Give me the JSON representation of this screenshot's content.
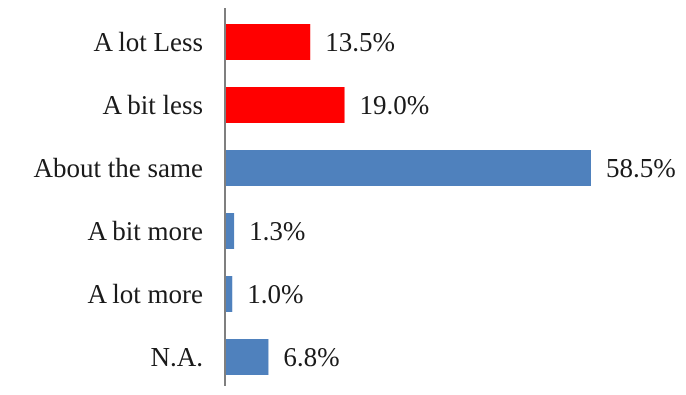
{
  "chart_data": {
    "type": "bar",
    "orientation": "horizontal",
    "categories": [
      "A lot Less",
      "A bit less",
      "About the same",
      "A bit more",
      "A lot more",
      "N.A."
    ],
    "values": [
      13.5,
      19.0,
      58.5,
      1.3,
      1.0,
      6.8
    ],
    "value_labels": [
      "13.5%",
      "19.0%",
      "58.5%",
      "1.3%",
      "1.0%",
      "6.8%"
    ],
    "bar_colors": [
      "#ff0000",
      "#ff0000",
      "#4f81bd",
      "#4f81bd",
      "#4f81bd",
      "#4f81bd"
    ],
    "axis_color": "#7f7f7f",
    "xlim": [
      0,
      58.5
    ],
    "title": "",
    "xlabel": "",
    "ylabel": "",
    "grid": false,
    "legend": "none"
  }
}
